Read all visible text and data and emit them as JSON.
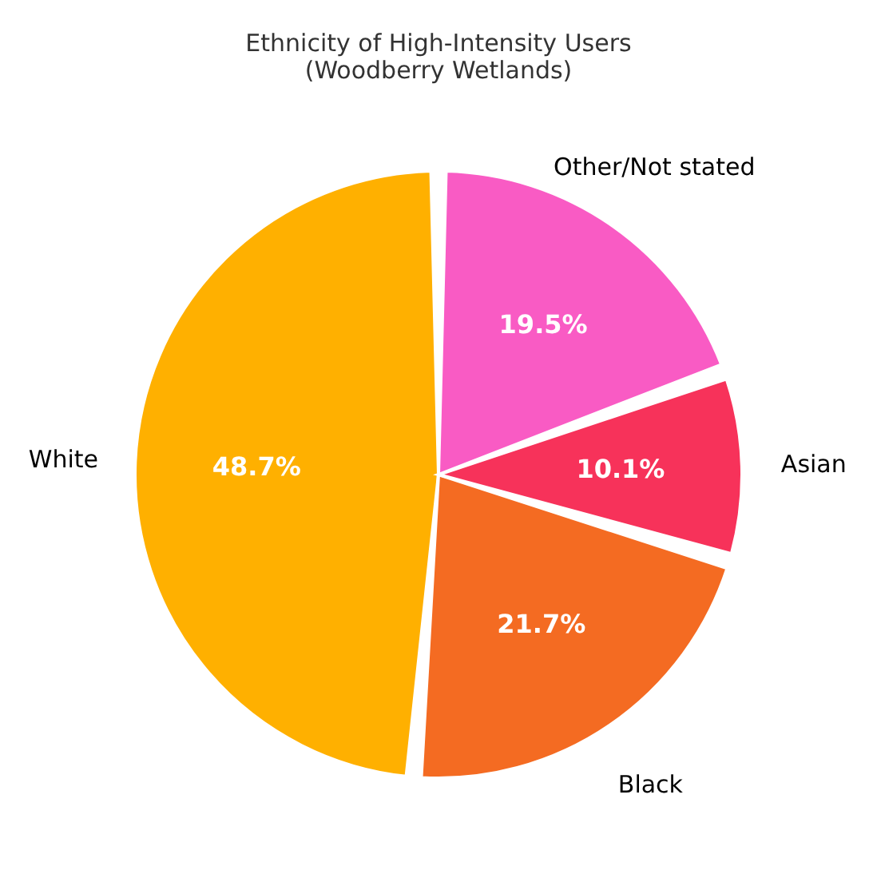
{
  "chart_data": {
    "type": "pie",
    "title": "Ethnicity of High-Intensity Users",
    "subtitle": "(Woodberry Wetlands)",
    "categories": [
      "White",
      "Black",
      "Asian",
      "Other/Not stated"
    ],
    "values": [
      48.7,
      21.7,
      10.1,
      19.5
    ],
    "colors": [
      "#ffb000",
      "#f46b22",
      "#f7325a",
      "#f95bc4"
    ],
    "value_labels": [
      "48.7%",
      "21.7%",
      "10.1%",
      "19.5%"
    ]
  }
}
